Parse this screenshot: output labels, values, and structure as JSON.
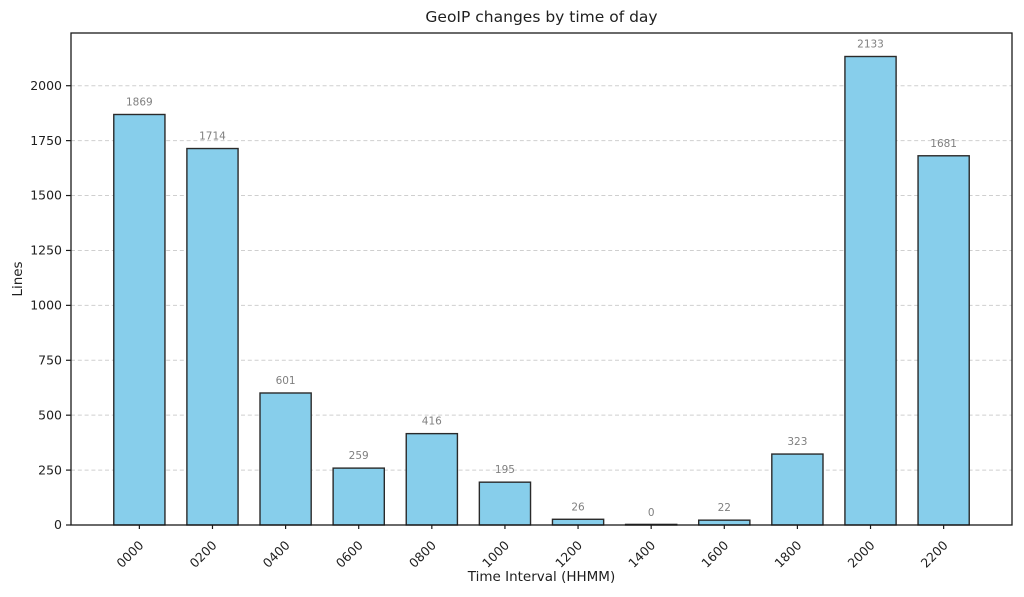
{
  "figure": {
    "background": "#ffffff"
  },
  "chart_data": {
    "type": "bar",
    "title": "GeoIP changes by time of day",
    "xlabel": "Time Interval (HHMM)",
    "ylabel": "Lines",
    "categories": [
      "0000",
      "0200",
      "0400",
      "0600",
      "0800",
      "1000",
      "1200",
      "1400",
      "1600",
      "1800",
      "2000",
      "2200"
    ],
    "values": [
      1869,
      1714,
      601,
      259,
      416,
      195,
      26,
      0,
      22,
      323,
      2133,
      1681
    ],
    "value_labels": [
      "1869",
      "1714",
      "601",
      "259",
      "416",
      "195",
      "26",
      "0",
      "22",
      "323",
      "2133",
      "1681"
    ],
    "y_ticks": [
      0,
      250,
      500,
      750,
      1000,
      1250,
      1500,
      1750,
      2000
    ],
    "ylim": [
      0,
      2240
    ],
    "bar_width_fraction": 0.7,
    "grid": "horizontal-dashed",
    "legend": "none",
    "colors": {
      "bar_fill": "#87CEEB",
      "bar_edge": "#2a2a2a",
      "grid": "#cfcfcf",
      "spine": "#1a1a1a",
      "text": "#1f1f1f",
      "value_label": "#7f7f7f",
      "background": "#ffffff"
    }
  }
}
